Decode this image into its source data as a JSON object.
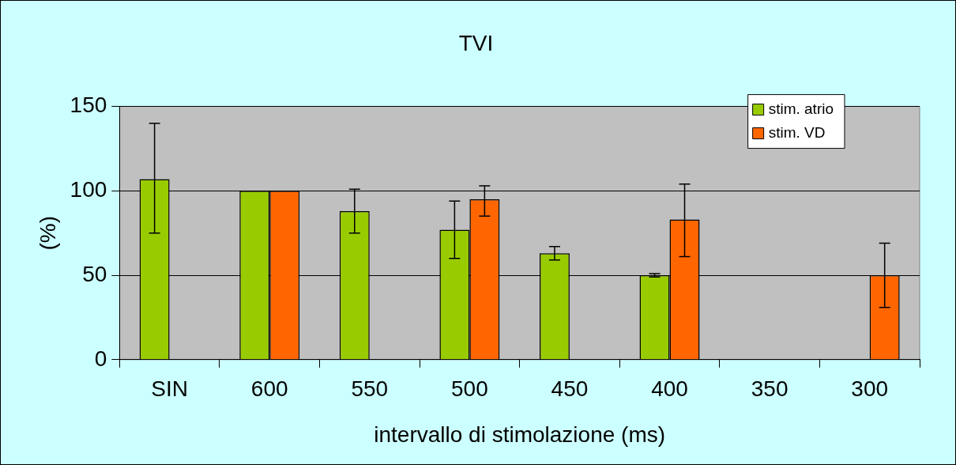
{
  "chart_data": {
    "type": "bar",
    "title": "TVI",
    "xlabel": "intervallo di stimolazione (ms)",
    "ylabel": "(%)",
    "categories": [
      "SIN",
      "600",
      "550",
      "500",
      "450",
      "400",
      "350",
      "300"
    ],
    "series": [
      {
        "name": "stim. atrio",
        "color": "#99cc00",
        "values": [
          107,
          100,
          88,
          77,
          63,
          50,
          null,
          null
        ],
        "errors": [
          [
            75,
            140
          ],
          null,
          [
            75,
            101
          ],
          [
            60,
            94
          ],
          [
            59,
            67
          ],
          [
            49,
            51
          ],
          null,
          null
        ]
      },
      {
        "name": "stim. VD",
        "color": "#ff6600",
        "values": [
          null,
          100,
          null,
          95,
          null,
          83,
          null,
          50
        ],
        "errors": [
          null,
          null,
          null,
          [
            85,
            103
          ],
          null,
          [
            61,
            104
          ],
          null,
          [
            31,
            69
          ]
        ]
      }
    ],
    "ylim": [
      0,
      150
    ],
    "yticks": [
      0,
      50,
      100,
      150
    ],
    "grid": "y",
    "legend": "top right"
  }
}
